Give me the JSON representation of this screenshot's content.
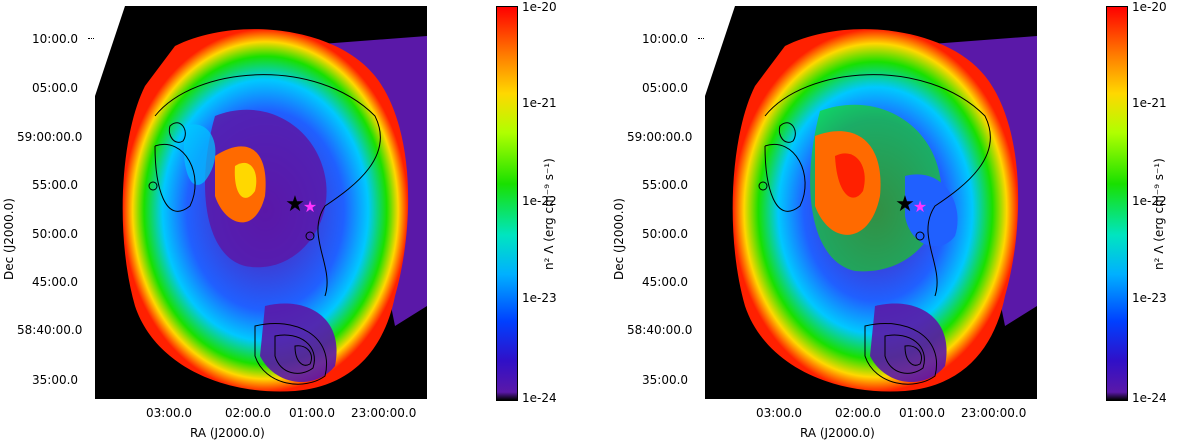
{
  "panels": [
    {
      "y_ticks": [
        "10:00.0",
        "05:00.0",
        "59:00:00.0",
        "55:00.0",
        "50:00.0",
        "45:00.0",
        "58:40:00.0",
        "35:00.0"
      ],
      "x_ticks": [
        "03:00.0",
        "02:00.0",
        "01:00.0",
        "23:00:00.0"
      ],
      "x_label": "RA (J2000.0)",
      "y_label": "Dec (J2000.0)",
      "colorbar_ticks": [
        "1e-20",
        "1e-21",
        "1e-22",
        "1e-23",
        "1e-24"
      ],
      "colorbar_label": "n² Λ (erg cm⁻⁹ s⁻¹)",
      "star_marker_black": "black-star",
      "star_marker_magenta": "magenta-star"
    },
    {
      "y_ticks": [
        "10:00.0",
        "05:00.0",
        "59:00:00.0",
        "55:00.0",
        "50:00.0",
        "45:00.0",
        "58:40:00.0",
        "35:00.0"
      ],
      "x_ticks": [
        "03:00.0",
        "02:00.0",
        "01:00.0",
        "23:00:00.0"
      ],
      "x_label": "RA (J2000.0)",
      "y_label": "Dec (J2000.0)",
      "colorbar_ticks": [
        "1e-20",
        "1e-21",
        "1e-22",
        "1e-23",
        "1e-24"
      ],
      "colorbar_label": "n² Λ (erg cm⁻⁹ s⁻¹)",
      "star_marker_black": "black-star",
      "star_marker_magenta": "magenta-star"
    }
  ],
  "colors": {
    "background": "#000000",
    "low": "#5a18a8",
    "mid_low": "#00b0ff",
    "mid": "#19e000",
    "mid_high": "#ffd800",
    "high": "#ff0000"
  }
}
